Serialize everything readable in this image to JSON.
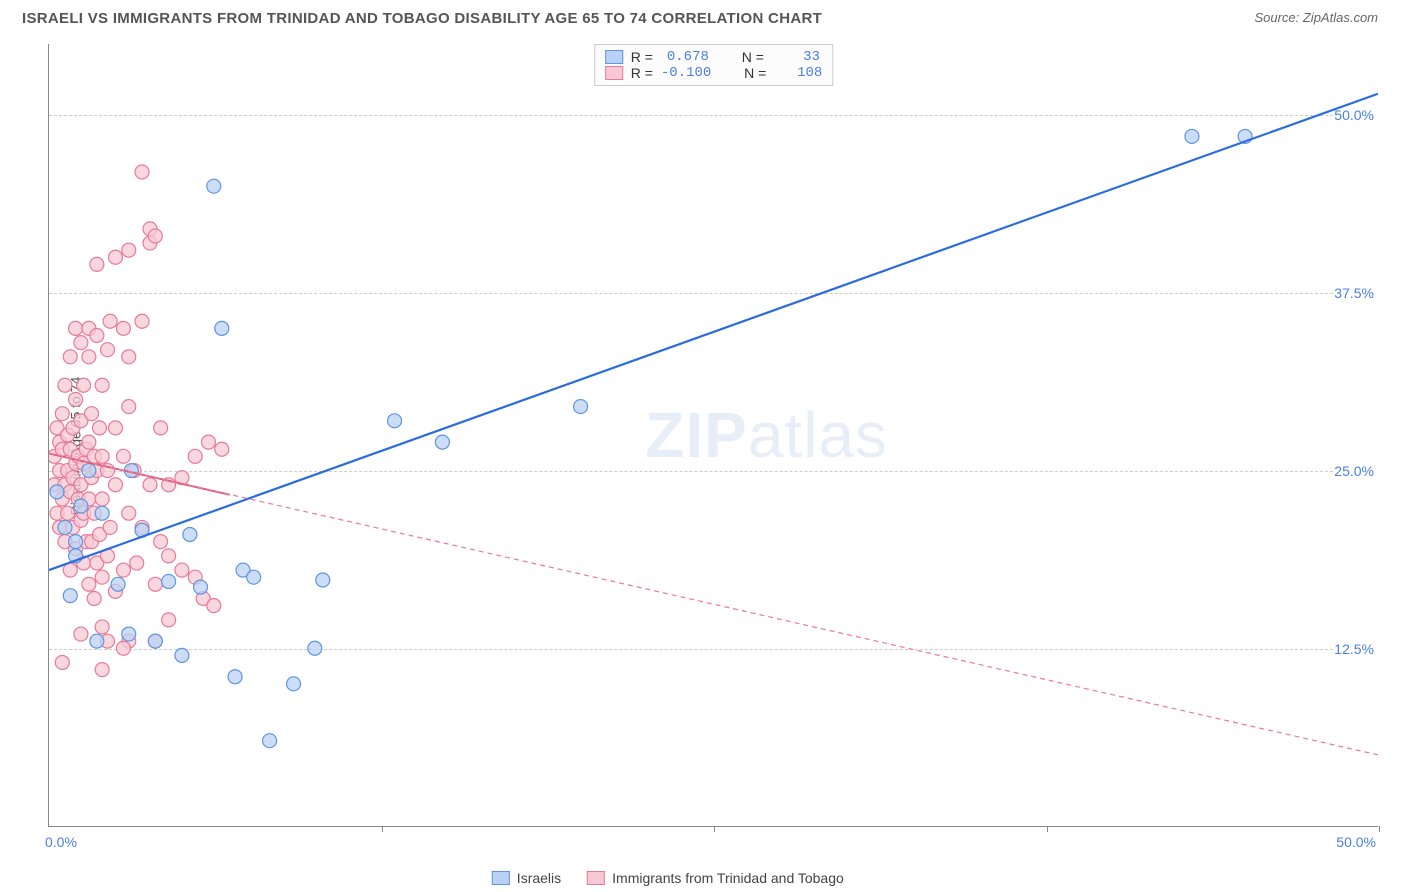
{
  "title": "ISRAELI VS IMMIGRANTS FROM TRINIDAD AND TOBAGO DISABILITY AGE 65 TO 74 CORRELATION CHART",
  "source": "Source: ZipAtlas.com",
  "ylabel": "Disability Age 65 to 74",
  "watermark_a": "ZIP",
  "watermark_b": "atlas",
  "chart": {
    "type": "scatter",
    "xlim": [
      0,
      50
    ],
    "ylim": [
      0,
      55
    ],
    "xticks_labels": {
      "start": "0.0%",
      "end": "50.0%"
    },
    "xtick_marks": [
      12.5,
      25,
      37.5,
      50
    ],
    "yticks": [
      {
        "v": 12.5,
        "label": "12.5%"
      },
      {
        "v": 25.0,
        "label": "25.0%"
      },
      {
        "v": 37.5,
        "label": "37.5%"
      },
      {
        "v": 50.0,
        "label": "50.0%"
      }
    ],
    "grid_color": "#cccccc",
    "axis_color": "#888888",
    "background_color": "#ffffff",
    "marker_radius": 7,
    "marker_stroke_width": 1.2,
    "series": [
      {
        "name": "Israelis",
        "color_fill": "#b9d2f4",
        "color_stroke": "#5e94e4",
        "R": "0.678",
        "N": "33",
        "trend": {
          "x1": 0,
          "y1": 18.0,
          "x2": 50,
          "y2": 51.5,
          "width": 2.2,
          "dash": "",
          "color": "#2b6be0"
        },
        "points": [
          [
            0.3,
            23.5
          ],
          [
            0.6,
            21.0
          ],
          [
            0.8,
            16.2
          ],
          [
            1.0,
            19.0
          ],
          [
            1.2,
            22.5
          ],
          [
            1.0,
            20.0
          ],
          [
            1.8,
            13.0
          ],
          [
            2.0,
            22.0
          ],
          [
            1.5,
            25.0
          ],
          [
            2.6,
            17.0
          ],
          [
            3.0,
            13.5
          ],
          [
            3.1,
            25.0
          ],
          [
            3.5,
            20.8
          ],
          [
            4.0,
            13.0
          ],
          [
            4.5,
            17.2
          ],
          [
            5.0,
            12.0
          ],
          [
            5.3,
            20.5
          ],
          [
            5.7,
            16.8
          ],
          [
            6.2,
            45.0
          ],
          [
            6.5,
            35.0
          ],
          [
            7.0,
            10.5
          ],
          [
            7.3,
            18.0
          ],
          [
            7.7,
            17.5
          ],
          [
            8.3,
            6.0
          ],
          [
            9.2,
            10.0
          ],
          [
            10.0,
            12.5
          ],
          [
            10.3,
            17.3
          ],
          [
            13.0,
            28.5
          ],
          [
            14.8,
            27.0
          ],
          [
            20.0,
            29.5
          ],
          [
            43.0,
            48.5
          ],
          [
            45.0,
            48.5
          ]
        ]
      },
      {
        "name": "Immigrants from Trinidad and Tobago",
        "color_fill": "#f7c9d4",
        "color_stroke": "#e87a98",
        "R": "-0.100",
        "N": "108",
        "trend": {
          "x1": 0,
          "y1": 26.2,
          "x2": 50,
          "y2": 5.0,
          "width": 1.2,
          "dash": "5,4",
          "color": "#e87a98"
        },
        "trend_solid": {
          "x1": 0,
          "y1": 26.2,
          "x2": 6.8,
          "y2": 23.3,
          "width": 2.0,
          "dash": "",
          "color": "#e06080"
        },
        "points": [
          [
            0.2,
            24.0
          ],
          [
            0.2,
            26.0
          ],
          [
            0.3,
            22.0
          ],
          [
            0.3,
            28.0
          ],
          [
            0.4,
            21.0
          ],
          [
            0.4,
            25.0
          ],
          [
            0.4,
            27.0
          ],
          [
            0.5,
            23.0
          ],
          [
            0.5,
            26.5
          ],
          [
            0.5,
            29.0
          ],
          [
            0.6,
            20.0
          ],
          [
            0.6,
            24.0
          ],
          [
            0.6,
            31.0
          ],
          [
            0.7,
            22.0
          ],
          [
            0.7,
            25.0
          ],
          [
            0.7,
            27.5
          ],
          [
            0.8,
            18.0
          ],
          [
            0.8,
            23.5
          ],
          [
            0.8,
            26.5
          ],
          [
            0.8,
            33.0
          ],
          [
            0.9,
            21.0
          ],
          [
            0.9,
            24.5
          ],
          [
            0.9,
            28.0
          ],
          [
            1.0,
            19.5
          ],
          [
            1.0,
            25.5
          ],
          [
            1.0,
            30.0
          ],
          [
            1.0,
            35.0
          ],
          [
            1.1,
            23.0
          ],
          [
            1.1,
            26.0
          ],
          [
            1.2,
            21.5
          ],
          [
            1.2,
            24.0
          ],
          [
            1.2,
            28.5
          ],
          [
            1.2,
            34.0
          ],
          [
            1.3,
            18.5
          ],
          [
            1.3,
            22.0
          ],
          [
            1.3,
            25.5
          ],
          [
            1.3,
            31.0
          ],
          [
            1.4,
            20.0
          ],
          [
            1.4,
            26.5
          ],
          [
            1.5,
            17.0
          ],
          [
            1.5,
            23.0
          ],
          [
            1.5,
            27.0
          ],
          [
            1.5,
            33.0
          ],
          [
            1.5,
            35.0
          ],
          [
            1.6,
            20.0
          ],
          [
            1.6,
            24.5
          ],
          [
            1.6,
            29.0
          ],
          [
            1.7,
            16.0
          ],
          [
            1.7,
            22.0
          ],
          [
            1.7,
            26.0
          ],
          [
            1.8,
            18.5
          ],
          [
            1.8,
            25.0
          ],
          [
            1.8,
            34.5
          ],
          [
            1.8,
            39.5
          ],
          [
            1.9,
            20.5
          ],
          [
            1.9,
            28.0
          ],
          [
            2.0,
            14.0
          ],
          [
            2.0,
            17.5
          ],
          [
            2.0,
            23.0
          ],
          [
            2.0,
            26.0
          ],
          [
            2.0,
            31.0
          ],
          [
            2.2,
            19.0
          ],
          [
            2.2,
            25.0
          ],
          [
            2.2,
            33.5
          ],
          [
            2.3,
            21.0
          ],
          [
            2.3,
            35.5
          ],
          [
            2.5,
            16.5
          ],
          [
            2.5,
            24.0
          ],
          [
            2.5,
            28.0
          ],
          [
            2.5,
            40.0
          ],
          [
            2.8,
            18.0
          ],
          [
            2.8,
            26.0
          ],
          [
            2.8,
            35.0
          ],
          [
            3.0,
            13.0
          ],
          [
            3.0,
            22.0
          ],
          [
            3.0,
            29.5
          ],
          [
            3.0,
            33.0
          ],
          [
            3.0,
            40.5
          ],
          [
            3.2,
            25.0
          ],
          [
            3.3,
            18.5
          ],
          [
            3.5,
            21.0
          ],
          [
            3.5,
            46.0
          ],
          [
            3.5,
            35.5
          ],
          [
            3.8,
            24.0
          ],
          [
            3.8,
            41.0
          ],
          [
            3.8,
            42.0
          ],
          [
            4.0,
            41.5
          ],
          [
            4.0,
            17.0
          ],
          [
            4.0,
            13.0
          ],
          [
            4.2,
            28.0
          ],
          [
            4.5,
            24.0
          ],
          [
            4.5,
            19.0
          ],
          [
            4.5,
            14.5
          ],
          [
            5.0,
            24.5
          ],
          [
            5.0,
            18.0
          ],
          [
            5.5,
            26.0
          ],
          [
            5.5,
            17.5
          ],
          [
            5.8,
            16.0
          ],
          [
            6.0,
            27.0
          ],
          [
            6.2,
            15.5
          ],
          [
            6.5,
            26.5
          ],
          [
            2.0,
            11.0
          ],
          [
            2.8,
            12.5
          ],
          [
            1.2,
            13.5
          ],
          [
            2.2,
            13.0
          ],
          [
            0.5,
            11.5
          ],
          [
            4.2,
            20.0
          ]
        ]
      }
    ]
  },
  "bottom_legend": [
    {
      "label": "Israelis",
      "fill": "#b9d2f4",
      "stroke": "#5e94e4"
    },
    {
      "label": "Immigrants from Trinidad and Tobago",
      "fill": "#f7c9d4",
      "stroke": "#e87a98"
    }
  ]
}
